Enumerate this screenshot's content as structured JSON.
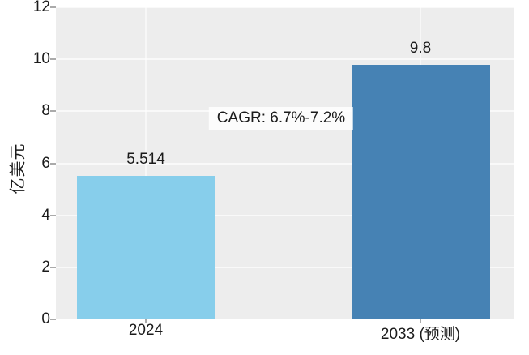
{
  "colors": {
    "page_bg": "#ffffff",
    "plot_bg": "#ededed",
    "grid": "rgba(255,255,255,0.65)",
    "text": "#1b1b1b",
    "tick": "#aaaaaa",
    "annotation_bg": "rgba(255,255,255,0.82)",
    "bar_2024": "#87CEEB",
    "bar_2033": "#4682B4"
  },
  "chart_data": {
    "type": "bar",
    "categories": [
      "2024",
      "2033 (预测)"
    ],
    "values": [
      5.514,
      9.8
    ],
    "value_labels": [
      "5.514",
      "9.8"
    ],
    "bar_colors": [
      "#87CEEB",
      "#4682B4"
    ],
    "ylabel": "亿美元",
    "xlabel": "",
    "ylim": [
      0,
      12
    ],
    "yticks": [
      0,
      2,
      4,
      6,
      8,
      10,
      12
    ],
    "grid": true,
    "legend": false,
    "annotation": "CAGR: 6.7%-7.2%"
  }
}
